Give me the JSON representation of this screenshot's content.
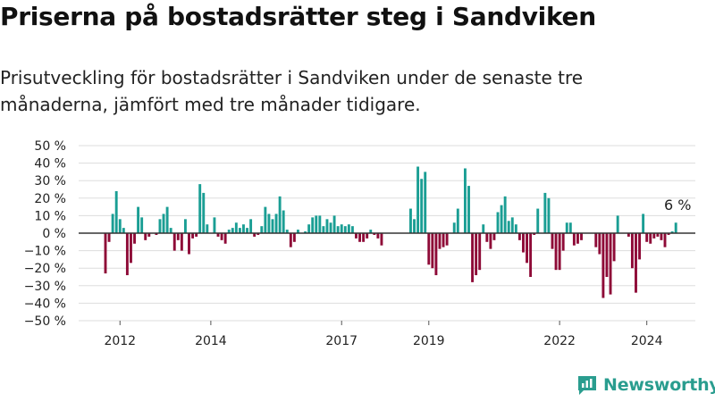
{
  "header": {
    "title": "Priserna på bostadsrätter steg i Sandviken",
    "subtitle": "Prisutveckling för bostadsrätter i Sandviken under de senaste tre månaderna, jämfört med tre månader tidigare."
  },
  "brand": {
    "name": "Newsworthy",
    "color": "#2a9d8f"
  },
  "chart_data": {
    "type": "bar",
    "title": "",
    "xlabel": "",
    "ylabel": "",
    "ylim": [
      -50,
      50
    ],
    "yticks": [
      -50,
      -40,
      -30,
      -20,
      -10,
      0,
      10,
      20,
      30,
      40,
      50
    ],
    "ytick_labels": [
      "−50 %",
      "−40 %",
      "−30 %",
      "−20 %",
      "−10 %",
      "0 %",
      "10 %",
      "20 %",
      "30 %",
      "40 %",
      "50 %"
    ],
    "xticks": [
      {
        "index": 4,
        "label": "2012"
      },
      {
        "index": 29,
        "label": "2014"
      },
      {
        "index": 65,
        "label": "2017"
      },
      {
        "index": 89,
        "label": "2019"
      },
      {
        "index": 125,
        "label": "2022"
      },
      {
        "index": 149,
        "label": "2024"
      }
    ],
    "x_start": "2011-10",
    "x_end": "2025-01",
    "grid": true,
    "positive_color": "#1a9e94",
    "negative_color": "#8e0a37",
    "last_value_label": "6 %",
    "values": [
      -23,
      -5,
      11,
      24,
      8,
      3,
      -24,
      -17,
      -6,
      15,
      9,
      -4,
      -2,
      0,
      -1,
      8,
      11,
      15,
      3,
      -10,
      -4,
      -10,
      8,
      -12,
      -3,
      -2,
      28,
      23,
      5,
      0,
      9,
      -2,
      -4,
      -6,
      2,
      3,
      6,
      3,
      5,
      3,
      8,
      -2,
      -1,
      4,
      15,
      11,
      8,
      11,
      21,
      13,
      2,
      -8,
      -5,
      2,
      0,
      1,
      5,
      9,
      10,
      10,
      4,
      8,
      6,
      10,
      4,
      5,
      4,
      5,
      4,
      -3,
      -5,
      -5,
      -3,
      2,
      -1,
      -3,
      -7,
      0,
      0,
      0,
      0,
      0,
      0,
      0,
      14,
      8,
      38,
      31,
      35,
      -18,
      -20,
      -24,
      -9,
      -8,
      -7,
      0,
      6,
      14,
      0,
      37,
      27,
      -28,
      -24,
      -21,
      5,
      -5,
      -9,
      -4,
      12,
      16,
      21,
      7,
      9,
      5,
      -4,
      -11,
      -17,
      -25,
      -1,
      14,
      0,
      23,
      20,
      -9,
      -21,
      -21,
      -10,
      6,
      6,
      -7,
      -6,
      -4,
      0,
      0,
      0,
      -8,
      -12,
      -37,
      -25,
      -35,
      -16,
      10,
      0,
      0,
      -2,
      -20,
      -34,
      -15,
      11,
      -5,
      -6,
      -3,
      -2,
      -4,
      -8,
      -1,
      1,
      6
    ]
  }
}
